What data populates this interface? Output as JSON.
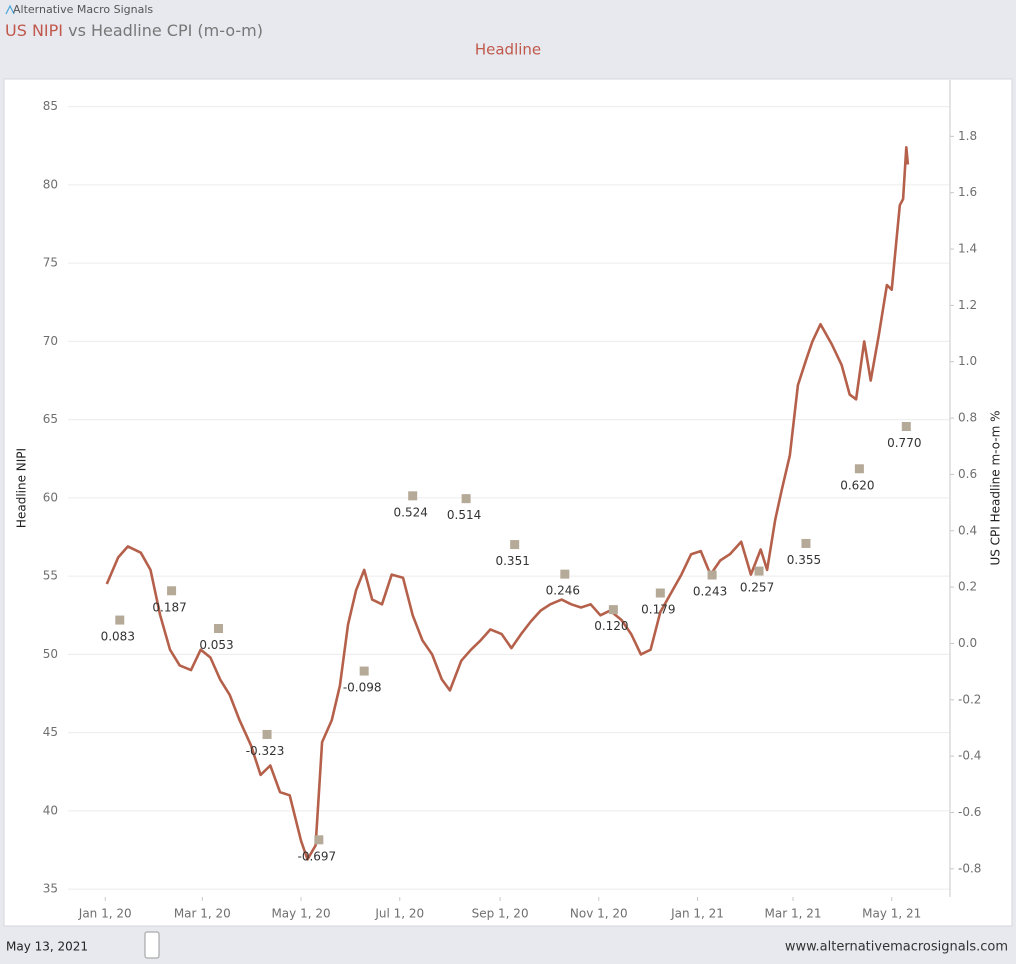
{
  "header": {
    "brand": "Alternative Macro Signals"
  },
  "footer": {
    "date": "May 13, 2021",
    "url": "www.alternativemacrosignals.com"
  },
  "chart_data": {
    "type": "line",
    "title": [
      "US NIPI",
      "vs Headline CPI (m-o-m)"
    ],
    "subtitle": "Headline",
    "y_label": "Headline NIPI",
    "y2_label": "US CPI Headline m-o-m %",
    "xlim": [
      "2019-12-09",
      "2021-06-06"
    ],
    "xticks": [
      {
        "value": "2020-01-01",
        "label": "Jan 1, 20"
      },
      {
        "value": "2020-03-01",
        "label": "Mar 1, 20"
      },
      {
        "value": "2020-05-01",
        "label": "May 1, 20"
      },
      {
        "value": "2020-07-01",
        "label": "Jul 1, 20"
      },
      {
        "value": "2020-09-01",
        "label": "Sep 1, 20"
      },
      {
        "value": "2020-11-01",
        "label": "Nov 1, 20"
      },
      {
        "value": "2021-01-01",
        "label": "Jan 1, 21"
      },
      {
        "value": "2021-03-01",
        "label": "Mar 1, 21"
      },
      {
        "value": "2021-05-01",
        "label": "May 1, 21"
      }
    ],
    "ylim": [
      34.5,
      86.7
    ],
    "yticks": [
      35,
      40,
      45,
      50,
      55,
      60,
      65,
      70,
      75,
      80,
      85
    ],
    "y2lim": [
      -0.9,
      2.0
    ],
    "y2ticks": [
      -0.8,
      -0.6,
      -0.4,
      -0.2,
      {
        "value": 0,
        "label": "0.0"
      },
      0.2,
      0.4,
      0.6,
      0.8,
      {
        "value": 1,
        "label": "1.0"
      },
      1.2,
      1.4,
      1.6,
      1.8
    ],
    "grid": true,
    "series": [
      {
        "name": "Headline NIPI",
        "type": "line",
        "color": "#b5604a",
        "axis": "y",
        "x": [
          "2020-01-02",
          "2020-01-09",
          "2020-01-15",
          "2020-01-23",
          "2020-01-29",
          "2020-02-04",
          "2020-02-10",
          "2020-02-16",
          "2020-02-23",
          "2020-02-29",
          "2020-03-06",
          "2020-03-12",
          "2020-03-18",
          "2020-03-24",
          "2020-03-31",
          "2020-04-06",
          "2020-04-12",
          "2020-04-18",
          "2020-04-24",
          "2020-05-01",
          "2020-05-05",
          "2020-05-10",
          "2020-05-14",
          "2020-05-20",
          "2020-05-25",
          "2020-05-30",
          "2020-06-04",
          "2020-06-09",
          "2020-06-14",
          "2020-06-20",
          "2020-06-26",
          "2020-07-03",
          "2020-07-09",
          "2020-07-15",
          "2020-07-21",
          "2020-07-27",
          "2020-08-01",
          "2020-08-08",
          "2020-08-14",
          "2020-08-20",
          "2020-08-26",
          "2020-09-02",
          "2020-09-08",
          "2020-09-14",
          "2020-09-20",
          "2020-09-26",
          "2020-10-02",
          "2020-10-09",
          "2020-10-15",
          "2020-10-21",
          "2020-10-27",
          "2020-11-02",
          "2020-11-08",
          "2020-11-15",
          "2020-11-21",
          "2020-11-27",
          "2020-12-03",
          "2020-12-09",
          "2020-12-15",
          "2020-12-22",
          "2020-12-28",
          "2021-01-03",
          "2021-01-09",
          "2021-01-15",
          "2021-01-21",
          "2021-01-28",
          "2021-02-03",
          "2021-02-09",
          "2021-02-13",
          "2021-02-18",
          "2021-02-22",
          "2021-02-27",
          "2021-03-04",
          "2021-03-09",
          "2021-03-13",
          "2021-03-18",
          "2021-03-25",
          "2021-03-31",
          "2021-04-05",
          "2021-04-09",
          "2021-04-14",
          "2021-04-18",
          "2021-04-23",
          "2021-04-28",
          "2021-05-01",
          "2021-05-06",
          "2021-05-08",
          "2021-05-10",
          "2021-05-11"
        ],
        "values": [
          54.5,
          56.2,
          56.9,
          56.5,
          55.4,
          52.5,
          50.3,
          49.3,
          49.0,
          50.3,
          49.8,
          48.4,
          47.4,
          45.8,
          44.2,
          42.3,
          42.9,
          41.2,
          41.0,
          38.1,
          36.9,
          37.8,
          44.4,
          45.8,
          48.0,
          51.9,
          54.1,
          55.4,
          53.5,
          53.2,
          55.1,
          54.9,
          52.5,
          50.9,
          50.0,
          48.4,
          47.7,
          49.6,
          50.3,
          50.9,
          51.6,
          51.3,
          50.4,
          51.3,
          52.1,
          52.8,
          53.2,
          53.5,
          53.2,
          53.0,
          53.2,
          52.5,
          52.8,
          52.2,
          51.3,
          50.0,
          50.3,
          52.7,
          53.8,
          55.1,
          56.4,
          56.6,
          55.1,
          56.0,
          56.4,
          57.2,
          55.1,
          56.7,
          55.4,
          58.6,
          60.5,
          62.7,
          67.2,
          68.8,
          70.0,
          71.1,
          69.8,
          68.5,
          66.6,
          66.3,
          70.0,
          67.5,
          70.4,
          73.6,
          73.3,
          78.7,
          79.1,
          82.4,
          81.3
        ]
      },
      {
        "name": "US CPI Headline m-o-m %",
        "type": "scatter",
        "color": "#b5a998",
        "axis": "y2",
        "x": [
          "2020-01-10",
          "2020-02-11",
          "2020-03-11",
          "2020-04-10",
          "2020-05-12",
          "2020-06-09",
          "2020-07-09",
          "2020-08-11",
          "2020-09-10",
          "2020-10-11",
          "2020-11-10",
          "2020-12-09",
          "2021-01-10",
          "2021-02-08",
          "2021-03-09",
          "2021-04-11",
          "2021-05-10"
        ],
        "values": [
          0.083,
          0.187,
          0.053,
          -0.323,
          -0.697,
          -0.098,
          0.524,
          0.514,
          0.351,
          0.246,
          0.12,
          0.179,
          0.243,
          0.257,
          0.355,
          0.62,
          0.77
        ],
        "value_labels": [
          "0.083",
          "0.187",
          "0.053",
          "-0.323",
          "-0.697",
          "-0.098",
          "0.524",
          "0.514",
          "0.351",
          "0.246",
          "0.120",
          "0.179",
          "0.243",
          "0.257",
          "0.355",
          "0.620",
          "0.770"
        ]
      }
    ]
  }
}
